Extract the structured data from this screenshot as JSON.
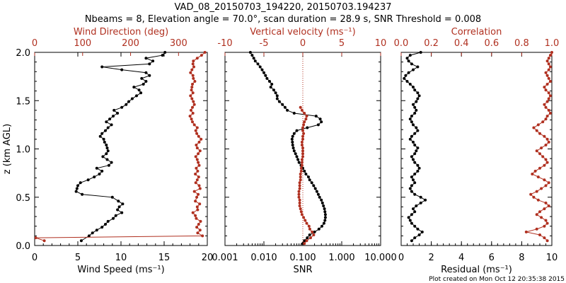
{
  "title_line1": "VAD_08_20150703_194220, 20150703.194237",
  "title_line2": "Nbeams = 8, Elevation angle = 70.0°, scan duration = 28.9 s, SNR Threshold = 0.008",
  "footer": "Plot created on Mon Oct 12 20:35:38 2015",
  "colors": {
    "black": "#000000",
    "red": "#b03020"
  },
  "chart_data": [
    {
      "type": "line",
      "panel": "left",
      "ylabel": "z (km AGL)",
      "yticks": [
        "0.0",
        "0.5",
        "1.0",
        "1.5",
        "2.0"
      ],
      "ylim": [
        0,
        2
      ],
      "bottom_axis": {
        "label": "Wind Speed (ms⁻¹)",
        "range": [
          0,
          20
        ],
        "ticks": [
          "0",
          "5",
          "10",
          "15",
          "20"
        ]
      },
      "top_axis": {
        "label": "Wind Direction (deg)",
        "range": [
          0,
          360
        ],
        "ticks": [
          "0",
          "100",
          "200",
          "300"
        ]
      },
      "series": [
        {
          "axis": "bottom",
          "color": "#000000",
          "z": [
            0.05,
            0.1,
            0.13,
            0.16,
            0.19,
            0.22,
            0.25,
            0.28,
            0.31,
            0.34,
            0.37,
            0.4,
            0.43,
            0.46,
            0.5,
            0.53,
            0.56,
            0.59,
            0.62,
            0.65,
            0.68,
            0.71,
            0.74,
            0.77,
            0.8,
            0.83,
            0.86,
            0.89,
            0.92,
            0.95,
            0.98,
            1.01,
            1.04,
            1.07,
            1.1,
            1.13,
            1.16,
            1.19,
            1.22,
            1.25,
            1.28,
            1.31,
            1.34,
            1.37,
            1.4,
            1.43,
            1.46,
            1.49,
            1.52,
            1.55,
            1.58,
            1.61,
            1.64,
            1.67,
            1.7,
            1.73,
            1.76,
            1.79,
            1.82,
            1.85,
            1.88,
            1.91,
            1.94,
            1.97,
            2.0
          ],
          "values": [
            5.4,
            6.3,
            6.7,
            7.2,
            7.8,
            8.2,
            8.5,
            9.1,
            9.4,
            10.1,
            9.6,
            9.8,
            10.2,
            9.7,
            9.0,
            5.5,
            4.8,
            4.9,
            5.0,
            5.3,
            6.2,
            6.9,
            7.5,
            7.8,
            7.2,
            8.6,
            8.9,
            8.4,
            7.9,
            8.3,
            8.5,
            8.4,
            8.3,
            8.1,
            8.0,
            7.6,
            7.8,
            8.2,
            8.5,
            8.9,
            8.3,
            8.7,
            9.1,
            9.6,
            9.2,
            10.1,
            10.6,
            10.9,
            11.3,
            11.8,
            12.3,
            12.1,
            11.5,
            12.6,
            12.9,
            12.4,
            13.3,
            12.9,
            10.1,
            7.8,
            13.3,
            13.7,
            12.9,
            14.8,
            15.1
          ]
        },
        {
          "axis": "top",
          "color": "#b03020",
          "z": [
            0.05,
            0.08,
            0.1,
            0.13,
            0.16,
            0.19,
            0.22,
            0.25,
            0.28,
            0.31,
            0.34,
            0.37,
            0.4,
            0.43,
            0.46,
            0.5,
            0.53,
            0.56,
            0.59,
            0.62,
            0.65,
            0.68,
            0.71,
            0.74,
            0.77,
            0.8,
            0.83,
            0.86,
            0.89,
            0.92,
            0.95,
            0.98,
            1.01,
            1.04,
            1.07,
            1.1,
            1.13,
            1.16,
            1.19,
            1.22,
            1.25,
            1.28,
            1.31,
            1.34,
            1.37,
            1.4,
            1.43,
            1.46,
            1.49,
            1.52,
            1.55,
            1.58,
            1.61,
            1.64,
            1.67,
            1.7,
            1.73,
            1.76,
            1.79,
            1.82,
            1.85,
            1.88,
            1.91,
            1.94,
            1.97,
            2.0
          ],
          "values": [
            20,
            2,
            350,
            340,
            345,
            338,
            342,
            346,
            337,
            335,
            330,
            340,
            339,
            344,
            335,
            338,
            341,
            333,
            345,
            343,
            336,
            339,
            342,
            335,
            340,
            337,
            343,
            341,
            339,
            336,
            341,
            345,
            339,
            337,
            343,
            347,
            342,
            338,
            336,
            339,
            333,
            329,
            327,
            324,
            330,
            326,
            329,
            333,
            331,
            328,
            325,
            330,
            327,
            328,
            329,
            334,
            331,
            330,
            325,
            328,
            332,
            330,
            331,
            339,
            348,
            355
          ]
        }
      ]
    },
    {
      "type": "line",
      "panel": "middle",
      "bottom_axis": {
        "label": "SNR",
        "range": [
          0.001,
          10
        ],
        "scale": "log",
        "ticks": [
          "0.001",
          "0.010",
          "0.100",
          "1.000",
          "10.000"
        ]
      },
      "top_axis": {
        "label": "Vertical velocity (ms⁻¹)",
        "range": [
          -10,
          10
        ],
        "ticks": [
          "-10",
          "-5",
          "0",
          "5",
          "10"
        ]
      },
      "series": [
        {
          "axis": "bottom",
          "color": "#000000",
          "z": [
            0.02,
            0.05,
            0.08,
            0.11,
            0.14,
            0.17,
            0.2,
            0.23,
            0.26,
            0.29,
            0.32,
            0.35,
            0.38,
            0.41,
            0.44,
            0.47,
            0.5,
            0.53,
            0.56,
            0.59,
            0.62,
            0.65,
            0.68,
            0.71,
            0.74,
            0.77,
            0.8,
            0.83,
            0.86,
            0.89,
            0.92,
            0.95,
            0.98,
            1.01,
            1.04,
            1.07,
            1.1,
            1.13,
            1.16,
            1.19,
            1.22,
            1.25,
            1.28,
            1.31,
            1.34,
            1.37,
            1.4,
            1.43,
            1.46,
            1.49,
            1.52,
            1.55,
            1.58,
            1.61,
            1.64,
            1.67,
            1.7,
            1.73,
            1.76,
            1.79,
            1.82,
            1.85,
            1.88,
            1.91,
            1.94,
            1.97,
            2.0
          ],
          "values": [
            0.1,
            0.11,
            0.13,
            0.15,
            0.2,
            0.26,
            0.31,
            0.35,
            0.37,
            0.38,
            0.38,
            0.37,
            0.36,
            0.34,
            0.32,
            0.3,
            0.27,
            0.25,
            0.23,
            0.21,
            0.19,
            0.17,
            0.15,
            0.14,
            0.12,
            0.11,
            0.1,
            0.09,
            0.08,
            0.075,
            0.07,
            0.065,
            0.06,
            0.057,
            0.055,
            0.054,
            0.053,
            0.055,
            0.06,
            0.07,
            0.13,
            0.25,
            0.3,
            0.28,
            0.22,
            0.06,
            0.04,
            0.035,
            0.03,
            0.025,
            0.022,
            0.022,
            0.02,
            0.018,
            0.015,
            0.016,
            0.014,
            0.012,
            0.011,
            0.01,
            0.009,
            0.008,
            0.007,
            0.006,
            0.0055,
            0.005,
            0.0045
          ]
        },
        {
          "axis": "top",
          "color": "#b03020",
          "z": [
            0.02,
            0.05,
            0.08,
            0.11,
            0.14,
            0.17,
            0.2,
            0.23,
            0.26,
            0.29,
            0.32,
            0.35,
            0.38,
            0.41,
            0.44,
            0.47,
            0.5,
            0.53,
            0.56,
            0.59,
            0.62,
            0.65,
            0.68,
            0.71,
            0.74,
            0.77,
            0.8,
            0.83,
            0.86,
            0.89,
            0.92,
            0.95,
            0.98,
            1.01,
            1.04,
            1.07,
            1.1,
            1.13,
            1.16,
            1.19,
            1.22,
            1.25,
            1.28,
            1.31,
            1.34,
            1.37,
            1.4,
            1.43
          ],
          "values": [
            0.2,
            0.5,
            1.0,
            1.4,
            1.2,
            0.9,
            0.8,
            0.5,
            0.3,
            0.1,
            -0.1,
            -0.2,
            -0.3,
            -0.4,
            -0.4,
            -0.4,
            -0.5,
            -0.5,
            -0.5,
            -0.4,
            -0.4,
            -0.4,
            -0.3,
            -0.3,
            -0.3,
            -0.2,
            -0.2,
            -0.1,
            -0.1,
            -0.1,
            0.0,
            0.0,
            0.0,
            0.0,
            -0.1,
            -0.1,
            0.0,
            0.0,
            0.1,
            0.0,
            0.0,
            0.1,
            0.2,
            0.4,
            0.5,
            0.2,
            -0.1,
            -0.3
          ]
        }
      ]
    },
    {
      "type": "line",
      "panel": "right",
      "bottom_axis": {
        "label": "Residual (ms⁻¹)",
        "range": [
          0,
          10
        ],
        "ticks": [
          "0",
          "2",
          "4",
          "6",
          "8",
          "10"
        ]
      },
      "top_axis": {
        "label": "Correlation",
        "range": [
          0,
          1
        ],
        "ticks": [
          "0.0",
          "0.2",
          "0.4",
          "0.6",
          "0.8",
          "1.0"
        ]
      },
      "series": [
        {
          "axis": "bottom",
          "color": "#000000",
          "z": [
            0.05,
            0.08,
            0.11,
            0.14,
            0.17,
            0.2,
            0.23,
            0.26,
            0.29,
            0.32,
            0.35,
            0.38,
            0.41,
            0.44,
            0.47,
            0.5,
            0.53,
            0.56,
            0.59,
            0.62,
            0.65,
            0.68,
            0.71,
            0.74,
            0.77,
            0.8,
            0.83,
            0.86,
            0.89,
            0.92,
            0.95,
            0.98,
            1.01,
            1.04,
            1.07,
            1.1,
            1.13,
            1.16,
            1.19,
            1.22,
            1.25,
            1.28,
            1.31,
            1.34,
            1.37,
            1.4,
            1.43,
            1.46,
            1.49,
            1.52,
            1.55,
            1.58,
            1.61,
            1.64,
            1.67,
            1.7,
            1.73,
            1.76,
            1.79,
            1.82,
            1.85,
            1.88,
            1.91,
            1.94,
            1.97,
            2.0
          ],
          "values": [
            0.7,
            0.9,
            1.2,
            1.4,
            1.1,
            0.9,
            0.7,
            0.6,
            0.5,
            0.7,
            0.9,
            0.8,
            1.0,
            1.3,
            1.6,
            1.3,
            0.9,
            0.7,
            0.6,
            0.7,
            0.9,
            0.8,
            0.7,
            0.9,
            1.1,
            1.2,
            1.1,
            0.9,
            0.8,
            0.7,
            0.9,
            1.0,
            1.1,
            0.9,
            0.8,
            0.6,
            0.7,
            0.9,
            1.1,
            1.0,
            0.8,
            0.7,
            0.6,
            0.7,
            0.9,
            1.0,
            0.9,
            0.8,
            1.0,
            1.1,
            1.2,
            1.1,
            0.9,
            0.8,
            0.6,
            0.4,
            0.2,
            0.3,
            0.5,
            0.8,
            1.1,
            0.7,
            0.5,
            0.4,
            0.6,
            1.3
          ]
        },
        {
          "axis": "top",
          "color": "#b03020",
          "z": [
            0.05,
            0.08,
            0.11,
            0.14,
            0.17,
            0.2,
            0.23,
            0.26,
            0.29,
            0.32,
            0.35,
            0.38,
            0.41,
            0.44,
            0.47,
            0.5,
            0.53,
            0.56,
            0.59,
            0.62,
            0.65,
            0.68,
            0.71,
            0.74,
            0.77,
            0.8,
            0.83,
            0.86,
            0.89,
            0.92,
            0.95,
            0.98,
            1.01,
            1.04,
            1.07,
            1.1,
            1.13,
            1.16,
            1.19,
            1.22,
            1.25,
            1.28,
            1.31,
            1.34,
            1.37,
            1.4,
            1.43,
            1.46,
            1.49,
            1.52,
            1.55,
            1.58,
            1.61,
            1.64,
            1.67,
            1.7,
            1.73,
            1.76,
            1.79,
            1.82,
            1.85,
            1.88,
            1.91,
            1.94,
            1.97,
            2.0
          ],
          "values": [
            0.97,
            0.95,
            0.92,
            0.83,
            0.9,
            0.95,
            0.97,
            0.96,
            0.93,
            0.9,
            0.92,
            0.95,
            0.98,
            0.96,
            0.91,
            0.88,
            0.86,
            0.9,
            0.93,
            0.96,
            0.98,
            0.95,
            0.91,
            0.87,
            0.89,
            0.92,
            0.95,
            0.97,
            0.96,
            0.94,
            0.92,
            0.9,
            0.93,
            0.96,
            0.98,
            0.97,
            0.95,
            0.92,
            0.9,
            0.88,
            0.91,
            0.94,
            0.96,
            0.97,
            0.99,
            0.98,
            0.96,
            0.95,
            0.97,
            0.98,
            0.99,
            0.98,
            0.96,
            0.95,
            0.97,
            0.99,
            0.98,
            0.97,
            0.96,
            0.98,
            0.99,
            0.98,
            0.97,
            0.98,
            0.99,
            1.0
          ]
        }
      ]
    }
  ]
}
